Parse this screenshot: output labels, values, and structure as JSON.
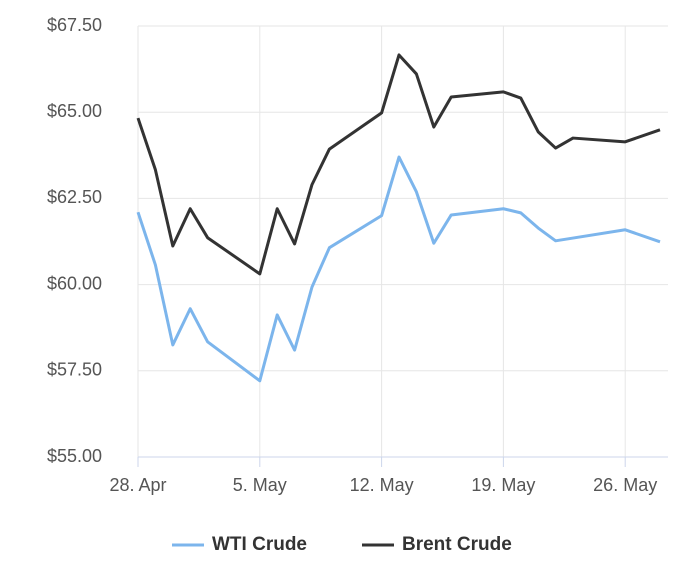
{
  "chart_data": {
    "type": "line",
    "x": [
      0,
      1,
      2,
      3,
      4,
      7,
      8,
      9,
      10,
      11,
      14,
      15,
      16,
      17,
      18,
      21,
      22,
      23,
      24,
      25,
      28,
      30
    ],
    "series": [
      {
        "name": "WTI Crude",
        "color": "#7cb5ec",
        "values": [
          62.1,
          60.57,
          58.25,
          59.3,
          58.34,
          57.21,
          59.12,
          58.1,
          59.93,
          61.07,
          62.0,
          63.7,
          62.69,
          61.2,
          62.02,
          62.2,
          62.08,
          61.64,
          61.27,
          61.35,
          61.59,
          61.24
        ]
      },
      {
        "name": "Brent Crude",
        "color": "#333333",
        "values": [
          64.83,
          63.33,
          61.12,
          62.2,
          61.36,
          60.31,
          62.2,
          61.18,
          62.9,
          63.93,
          64.98,
          66.66,
          66.11,
          64.57,
          65.44,
          65.59,
          65.41,
          64.43,
          63.96,
          64.25,
          64.14,
          64.49
        ]
      }
    ],
    "xlim": [
      0,
      30
    ],
    "xticks": [
      {
        "value": 0,
        "label": "28. Apr"
      },
      {
        "value": 7,
        "label": "5. May"
      },
      {
        "value": 14,
        "label": "12. May"
      },
      {
        "value": 21,
        "label": "19. May"
      },
      {
        "value": 28,
        "label": "26. May"
      }
    ],
    "ylim": [
      55,
      67.5
    ],
    "yticks": [
      {
        "value": 55,
        "label": "$55.00"
      },
      {
        "value": 57.5,
        "label": "$57.50"
      },
      {
        "value": 60,
        "label": "$60.00"
      },
      {
        "value": 62.5,
        "label": "$62.50"
      },
      {
        "value": 65,
        "label": "$65.00"
      },
      {
        "value": 67.5,
        "label": "$67.50"
      }
    ],
    "grid": true,
    "legend": "bottom"
  }
}
